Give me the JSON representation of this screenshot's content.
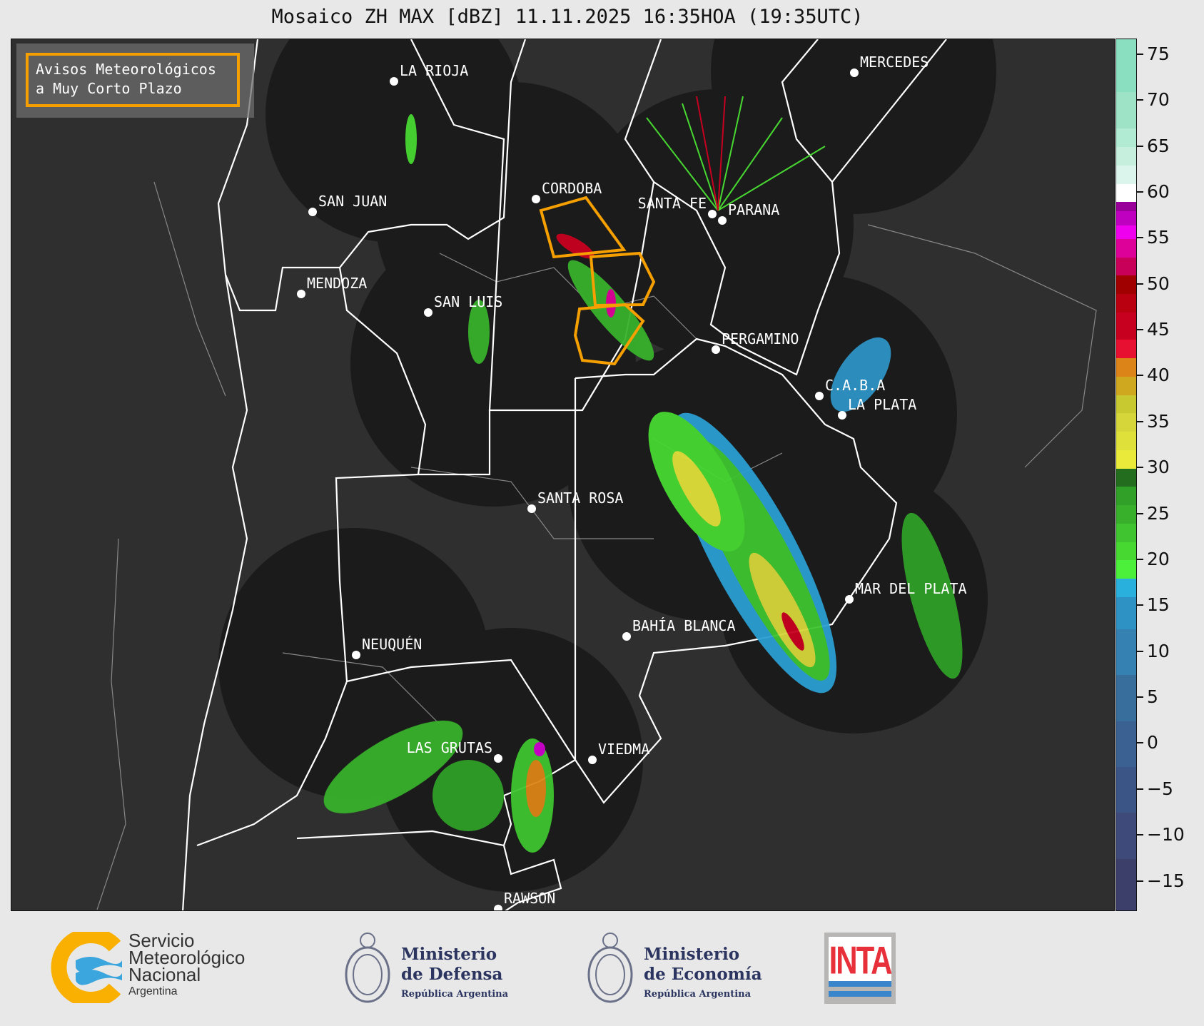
{
  "title": "Mosaico ZH MAX [dBZ] 11.11.2025 16:35HOA (19:35UTC)",
  "legend": {
    "line1": "Avisos Meteorológicos",
    "line2": "a Muy Corto Plazo",
    "border_color": "#f5a000"
  },
  "cities": [
    {
      "name": "LA RIOJA"
    },
    {
      "name": "SAN JUAN"
    },
    {
      "name": "CORDOBA"
    },
    {
      "name": "SANTA FE"
    },
    {
      "name": "PARANA"
    },
    {
      "name": "MERCEDES"
    },
    {
      "name": "MENDOZA"
    },
    {
      "name": "SAN LUIS"
    },
    {
      "name": "PERGAMINO"
    },
    {
      "name": "C.A.B.A"
    },
    {
      "name": "LA PLATA"
    },
    {
      "name": "SANTA ROSA"
    },
    {
      "name": "MAR DEL PLATA"
    },
    {
      "name": "BAHÍA BLANCA"
    },
    {
      "name": "NEUQUÉN"
    },
    {
      "name": "LAS GRUTAS"
    },
    {
      "name": "VIEDMA"
    },
    {
      "name": "RAWSON"
    }
  ],
  "colorbar": {
    "unit": "dBZ",
    "range": [
      -18.3,
      76.7
    ],
    "ticks": [
      "75",
      "70",
      "65",
      "60",
      "55",
      "50",
      "45",
      "40",
      "35",
      "30",
      "25",
      "20",
      "15",
      "10",
      "5",
      "0",
      "−5",
      "−10",
      "−15"
    ],
    "tick_values": [
      75,
      70,
      65,
      60,
      55,
      50,
      45,
      40,
      35,
      30,
      25,
      20,
      15,
      10,
      5,
      0,
      -5,
      -10,
      -15
    ],
    "bands": [
      [
        -18.3,
        -12.5,
        "#3d3f6b"
      ],
      [
        -12.5,
        -7.5,
        "#3d4a7a"
      ],
      [
        -7.5,
        -2.5,
        "#3b5586"
      ],
      [
        -2.5,
        2.5,
        "#3a6192"
      ],
      [
        2.5,
        7.5,
        "#376e9c"
      ],
      [
        7.5,
        12.5,
        "#3582b2"
      ],
      [
        12.5,
        16,
        "#2e93c4"
      ],
      [
        16,
        18,
        "#2ab0dc"
      ],
      [
        18,
        20,
        "#4cf03a"
      ],
      [
        20,
        22,
        "#48d832"
      ],
      [
        22,
        24,
        "#40c430"
      ],
      [
        24,
        26,
        "#38b02c"
      ],
      [
        26,
        28,
        "#30a028"
      ],
      [
        28,
        30,
        "#226e1e"
      ],
      [
        30,
        32,
        "#eaea3a"
      ],
      [
        32,
        34,
        "#e0e03a"
      ],
      [
        34,
        36,
        "#d6d63a"
      ],
      [
        36,
        38,
        "#c8c830"
      ],
      [
        38,
        40,
        "#d0a820"
      ],
      [
        40,
        42,
        "#dc8418"
      ],
      [
        42,
        44,
        "#e81030"
      ],
      [
        44,
        47,
        "#c80020"
      ],
      [
        47,
        49,
        "#b80010"
      ],
      [
        49,
        51,
        "#a00000"
      ],
      [
        51,
        53,
        "#c8005a"
      ],
      [
        53,
        55,
        "#dd0099"
      ],
      [
        55,
        56.5,
        "#ee00ee"
      ],
      [
        56.5,
        58,
        "#c000c0"
      ],
      [
        58,
        59,
        "#990099"
      ],
      [
        59,
        61,
        "#ffffff"
      ],
      [
        61,
        63,
        "#dcf5ec"
      ],
      [
        63,
        65,
        "#c6f0dd"
      ],
      [
        65,
        67,
        "#b2ebd3"
      ],
      [
        67,
        71,
        "#9ee3c6"
      ],
      [
        71,
        76.7,
        "#8adfc0"
      ]
    ]
  },
  "footer": {
    "smn": {
      "line1": "Servicio",
      "line2": "Meteorológico",
      "line3": "Nacional",
      "line4": "Argentina"
    },
    "defensa": {
      "line1": "Ministerio",
      "line2": "de Defensa",
      "line3": "República Argentina"
    },
    "economia": {
      "line1": "Ministerio",
      "line2": "de Economía",
      "line3": "República Argentina"
    },
    "inta": {
      "text": "INTA"
    }
  },
  "colors": {
    "map_bg": "#2f2f2f",
    "radar_coverage": "#1b1b1b",
    "boundary": "#ffffff",
    "warning": "#f5a000"
  }
}
